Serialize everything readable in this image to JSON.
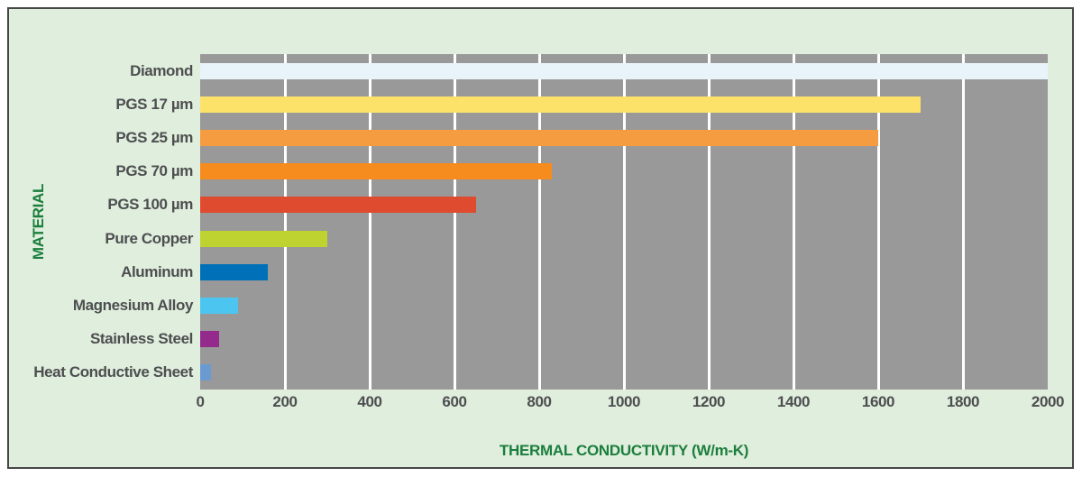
{
  "panel": {
    "background_color": "#e0eedd",
    "border_color": "#474747"
  },
  "chart_data": {
    "type": "bar",
    "orientation": "horizontal",
    "xlabel": "THERMAL CONDUCTIVITY (W/m-K)",
    "ylabel": "MATERIAL",
    "xlim": [
      0,
      2000
    ],
    "xticks": [
      0,
      200,
      400,
      600,
      800,
      1000,
      1200,
      1400,
      1600,
      1800,
      2000
    ],
    "grid": true,
    "plot_background_color": "#999999",
    "gridline_color": "#ffffff",
    "axis_title_color": "#1b7e3c",
    "tick_label_color": "#4d4e50",
    "categories": [
      "Diamond",
      "PGS 17 µm",
      "PGS 25 µm",
      "PGS 70 µm",
      "PGS 100 µm",
      "Pure Copper",
      "Aluminum",
      "Magnesium Alloy",
      "Stainless Steel",
      "Heat Conductive Sheet"
    ],
    "values": [
      2000,
      1700,
      1600,
      830,
      650,
      300,
      160,
      90,
      45,
      25
    ],
    "bar_colors": [
      "#e9f3fa",
      "#fde26a",
      "#f59b40",
      "#f68b1e",
      "#df4b2f",
      "#bfd330",
      "#0070b9",
      "#4cc5f0",
      "#932a8c",
      "#6b9ad1"
    ]
  }
}
